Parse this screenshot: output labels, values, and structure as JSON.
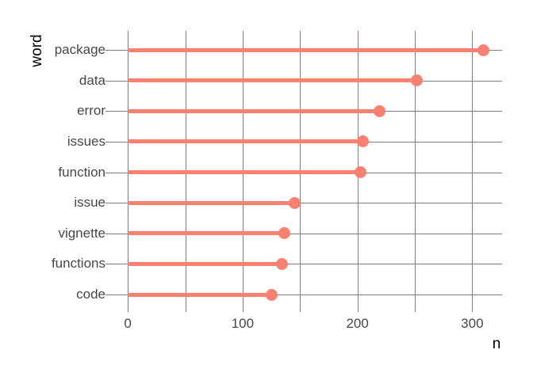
{
  "chart_data": {
    "type": "lollipop",
    "orientation": "horizontal",
    "title": "",
    "xlabel": "n",
    "ylabel": "word",
    "categories": [
      "package",
      "data",
      "error",
      "issues",
      "function",
      "issue",
      "vignette",
      "functions",
      "code"
    ],
    "values": [
      310,
      252,
      219,
      205,
      203,
      145,
      136,
      134,
      125
    ],
    "x_ticks": [
      0,
      100,
      200,
      300
    ],
    "x_gridlines": [
      0,
      50,
      100,
      150,
      200,
      250,
      300
    ],
    "xlim": [
      -16,
      326
    ],
    "grid": "on",
    "legend": "none",
    "colors": {
      "lollipop": "#fa8072",
      "gridline": "#7f7f7f",
      "axis_text": "#474747",
      "axis_title": "#000000",
      "background": "#ffffff"
    }
  }
}
